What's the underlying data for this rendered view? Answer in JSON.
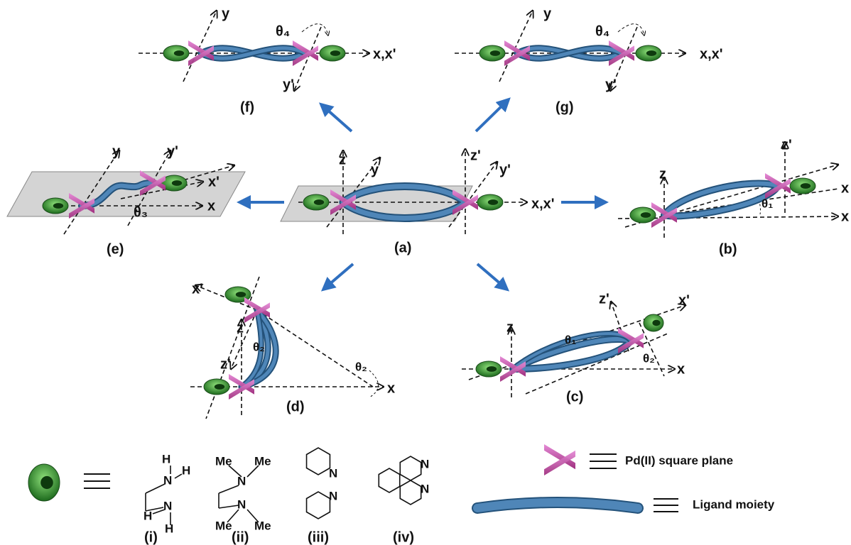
{
  "panels": {
    "f": {
      "label": "(f)",
      "texts": [
        "y",
        "θ₄",
        "y'",
        "x,x'"
      ]
    },
    "g": {
      "label": "(g)",
      "texts": [
        "y",
        "θ₄",
        "y'",
        "x,x'"
      ]
    },
    "e": {
      "label": "(e)",
      "texts": [
        "y",
        "y'",
        "x'",
        "x",
        "θ₃"
      ]
    },
    "a": {
      "label": "(a)",
      "texts": [
        "z",
        "y",
        "z'",
        "y'",
        "x,x'"
      ]
    },
    "b": {
      "label": "(b)",
      "texts": [
        "z'",
        "z",
        "x",
        "x",
        "θ₁"
      ]
    },
    "d": {
      "label": "(d)",
      "texts": [
        "x'",
        "z",
        "θ₂",
        "z'",
        "θ₂",
        "x"
      ]
    },
    "c": {
      "label": "(c)",
      "texts": [
        "z",
        "z'",
        "x'",
        "θ₁",
        "θ₂",
        "x"
      ]
    }
  },
  "ligands": [
    {
      "label": "(i)",
      "atoms": [
        "H",
        "N",
        "H",
        "N",
        "H",
        "H"
      ]
    },
    {
      "label": "(ii)",
      "atoms": [
        "Me",
        "Me",
        "N",
        "N",
        "Me",
        "Me"
      ]
    },
    {
      "label": "(iii)",
      "atoms": [
        "N",
        "N"
      ]
    },
    {
      "label": "(iv)",
      "atoms": [
        "N",
        "N"
      ]
    }
  ],
  "legend": {
    "pd": "Pd(II) square plane",
    "ligand": "Ligand moiety"
  }
}
